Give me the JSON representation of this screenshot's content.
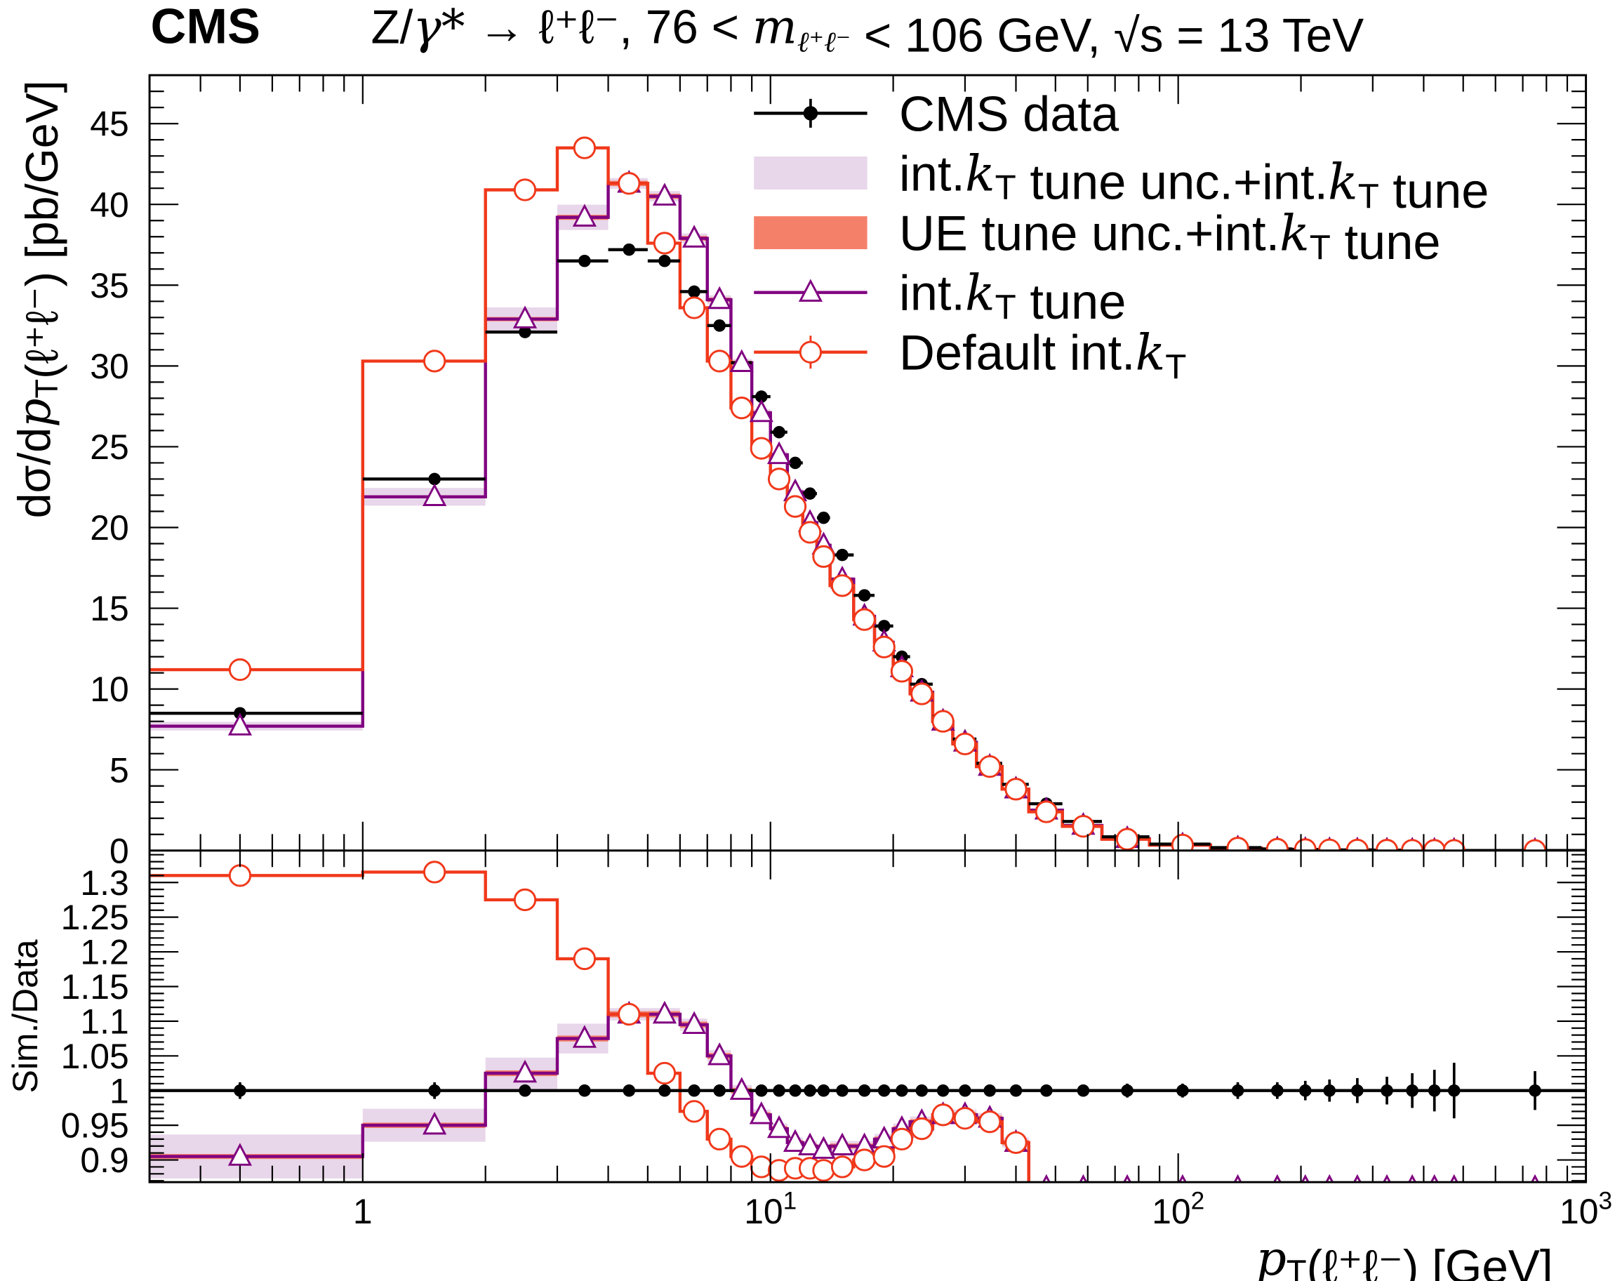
{
  "chart_data": {
    "type": "line",
    "experiment_label": "CMS",
    "title": "Z/γ* → ℓ⁺ℓ⁻, 76 < m_{ℓ⁺ℓ⁻} < 106 GeV, √s = 13 TeV",
    "xlabel": "p_T(ℓ⁺ℓ⁻) [GeV]",
    "ylabel": "dσ/dp_T(ℓ⁺ℓ⁻) [pb/GeV]",
    "ratio_ylabel": "Sim./Data",
    "xscale": "log",
    "xlim": [
      0.3,
      1000
    ],
    "ylim": [
      0,
      48
    ],
    "ratio_ylim": [
      0.868,
      1.346
    ],
    "grid": false,
    "legend_placement": "top-right",
    "x_tick_labels": [
      {
        "value": 1,
        "label": "1"
      },
      {
        "value": 10,
        "label": "10",
        "exp": "1"
      },
      {
        "value": 100,
        "label": "10",
        "exp": "2"
      },
      {
        "value": 1000,
        "label": "10",
        "exp": "3"
      }
    ],
    "y_tick_labels": [
      "0",
      "5",
      "10",
      "15",
      "20",
      "25",
      "30",
      "35",
      "40",
      "45"
    ],
    "ratio_tick_labels": [
      "0.9",
      "0.95",
      "1",
      "1.05",
      "1.1",
      "1.15",
      "1.2",
      "1.25",
      "1.3"
    ],
    "bin_edges": [
      0,
      1,
      2,
      3,
      4,
      5,
      6,
      7,
      8,
      9,
      10,
      11,
      12,
      13,
      14,
      16,
      18,
      20,
      22,
      25,
      28,
      32,
      37,
      43,
      52,
      65,
      85,
      120,
      160,
      190,
      220,
      250,
      300,
      350,
      400,
      450,
      500,
      1000
    ],
    "colors": {
      "data": "#000000",
      "intkt": "#800080",
      "default": "#f0381a",
      "intkt_band": "#e8d6ea",
      "ue_band": "#f5806a"
    },
    "legend": [
      {
        "key": "data",
        "label": "CMS data"
      },
      {
        "key": "intkt_band",
        "label": "int.k_T tune unc.+int.k_T tune"
      },
      {
        "key": "ue_band",
        "label": "UE tune unc.+int.k_T tune"
      },
      {
        "key": "intkt",
        "label": "int.k_T tune"
      },
      {
        "key": "default",
        "label": "Default int.k_T"
      }
    ],
    "series": [
      {
        "name": "CMS data",
        "key": "data",
        "values": [
          8.5,
          23.0,
          32.1,
          36.5,
          37.2,
          36.5,
          34.6,
          32.5,
          30.2,
          28.1,
          25.9,
          24.0,
          22.1,
          20.6,
          18.3,
          15.8,
          13.9,
          12.0,
          10.3,
          8.3,
          6.9,
          5.4,
          4.1,
          2.9,
          1.8,
          0.85,
          0.4,
          0.18,
          0.1,
          0.07,
          0.05,
          0.035,
          0.025,
          0.017,
          0.012,
          0.009,
          0.003
        ],
        "ratio": [
          1,
          1,
          1,
          1,
          1,
          1,
          1,
          1,
          1,
          1,
          1,
          1,
          1,
          1,
          1,
          1,
          1,
          1,
          1,
          1,
          1,
          1,
          1,
          1,
          1,
          1,
          1,
          1,
          1,
          1,
          1,
          1,
          1,
          1,
          1,
          1,
          1
        ],
        "ratio_err": [
          0.012,
          0.012,
          0.008,
          0.008,
          0.008,
          0.008,
          0.008,
          0.008,
          0.008,
          0.008,
          0.008,
          0.008,
          0.008,
          0.008,
          0.008,
          0.008,
          0.008,
          0.008,
          0.008,
          0.008,
          0.008,
          0.008,
          0.008,
          0.008,
          0.008,
          0.01,
          0.01,
          0.012,
          0.012,
          0.014,
          0.016,
          0.018,
          0.02,
          0.025,
          0.03,
          0.04,
          0.028
        ]
      },
      {
        "name": "int.k_T tune",
        "key": "intkt",
        "values": [
          7.7,
          21.9,
          32.9,
          39.2,
          41.3,
          40.5,
          37.9,
          34.1,
          30.2,
          27.1,
          24.5,
          22.2,
          20.3,
          18.9,
          16.8,
          14.5,
          12.9,
          11.3,
          9.8,
          8.0,
          6.7,
          5.2,
          3.8,
          2.5,
          1.55,
          0.73,
          0.34,
          0.15,
          0.09,
          0.06,
          0.043,
          0.03,
          0.021,
          0.015,
          0.01,
          0.008,
          0.0026
        ],
        "ratio": [
          0.905,
          0.95,
          1.025,
          1.075,
          1.11,
          1.11,
          1.095,
          1.05,
          1.0,
          0.965,
          0.945,
          0.925,
          0.92,
          0.915,
          0.92,
          0.92,
          0.93,
          0.945,
          0.955,
          0.965,
          0.965,
          0.96,
          0.925,
          0.86,
          0.86,
          0.86,
          0.86,
          0.86,
          0.86,
          0.86,
          0.86,
          0.86,
          0.86,
          0.86,
          0.86,
          0.86,
          0.86
        ],
        "band_rel_unc": [
          0.035,
          0.025,
          0.022,
          0.02,
          0.008,
          0.008,
          0.008,
          0.008,
          0.008,
          0.008,
          0.008,
          0.008,
          0.008,
          0.008,
          0.008,
          0.008,
          0.008,
          0.008,
          0.008,
          0.008,
          0.008,
          0.008,
          0.008,
          0.008,
          0.008,
          0.008,
          0.008,
          0.008,
          0.008,
          0.008,
          0.008,
          0.008,
          0.008,
          0.008,
          0.008,
          0.008,
          0.008
        ]
      },
      {
        "name": "Default int.k_T",
        "key": "default",
        "values": [
          11.2,
          30.3,
          40.9,
          43.5,
          41.3,
          37.6,
          33.6,
          30.3,
          27.4,
          24.9,
          23.0,
          21.3,
          19.7,
          18.2,
          16.4,
          14.3,
          12.6,
          11.1,
          9.7,
          8.0,
          6.6,
          5.2,
          3.8,
          2.4,
          1.5,
          0.7,
          0.34,
          0.15,
          0.08,
          0.06,
          0.04,
          0.03,
          0.02,
          0.014,
          0.01,
          0.008,
          0.0025
        ],
        "ratio": [
          1.31,
          1.315,
          1.275,
          1.19,
          1.11,
          1.025,
          0.97,
          0.93,
          0.905,
          0.89,
          0.885,
          0.888,
          0.888,
          0.885,
          0.89,
          0.9,
          0.905,
          0.93,
          0.945,
          0.965,
          0.96,
          0.955,
          0.925,
          0.84,
          0.84,
          0.84,
          0.84,
          0.84,
          0.84,
          0.84,
          0.84,
          0.84,
          0.84,
          0.84,
          0.84,
          0.84,
          0.84
        ]
      }
    ]
  }
}
